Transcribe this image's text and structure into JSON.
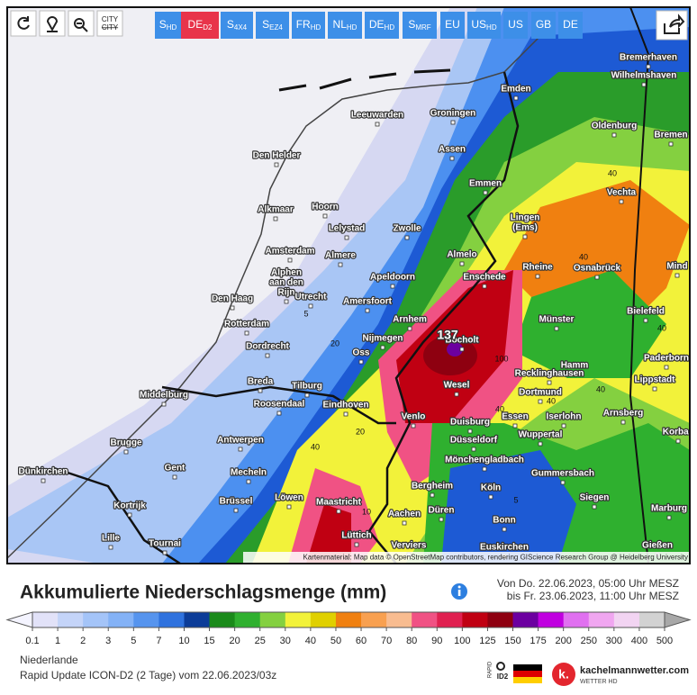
{
  "toolbar": {
    "city_button": {
      "top": "CITY",
      "bottom": "CITY"
    },
    "models": [
      {
        "main": "S",
        "sub": "HD"
      },
      {
        "main": "DE",
        "sub": "D2",
        "active": true
      },
      {
        "main": "S",
        "sub": "4X4"
      },
      {
        "main": "S",
        "sub": "EZ4"
      },
      {
        "main": "FR",
        "sub": "HD"
      },
      {
        "main": "NL",
        "sub": "HD"
      },
      {
        "main": "DE",
        "sub": "HD"
      },
      {
        "main": "S",
        "sub": "MRF"
      },
      {
        "main": "EU"
      },
      {
        "main": "US",
        "sub": "HD"
      },
      {
        "main": "US"
      },
      {
        "main": "GB"
      },
      {
        "main": "DE"
      }
    ]
  },
  "map": {
    "attribution": "Kartenmaterial: Map data © OpenStreetMap contributors, rendering GIScience Research Group @ Heidelberg University",
    "cities": [
      "Bremerhaven",
      "Wilhelmshaven",
      "Emden",
      "Leeuwarden",
      "Groningen",
      "Oldenburg",
      "Bremen",
      "Den Helder",
      "Assen",
      "Vechta",
      "Emmen",
      "Alkmaar",
      "Hoorn",
      [
        "Lingen",
        "(Ems)"
      ],
      "Lelystad",
      "Zwolle",
      "Almelo",
      "Amsterdam",
      "Almere",
      "Rheine",
      "Osnabrück",
      "Mind",
      "Apeldoorn",
      "Enschede",
      [
        "Alphen",
        "aan den",
        "Rijn"
      ],
      "Den Haag",
      "Utrecht",
      "Amersfoort",
      "Bielefeld",
      "Rotterdam",
      "Arnhem",
      "Münster",
      "Bocholt",
      "Nijmegen",
      "Dordrecht",
      "Oss",
      "Paderborn",
      "Hamm",
      "Recklinghausen",
      "Breda",
      "Tilburg",
      "Wesel",
      "Lippstadt",
      "Middelburg",
      "Dortmund",
      "Roosendaal",
      "Eindhoven",
      "Essen",
      "Iserlohn",
      "Arnsberg",
      "Venlo",
      "Duisburg",
      "Korbac",
      "Wuppertal",
      "Brugge",
      "Antwerpen",
      "Düsseldorf",
      "Mönchengladbach",
      "Dünkirchen",
      "Gent",
      "Mecheln",
      "Gummersbach",
      "Bergheim",
      "Köln",
      "Löwen",
      "Brüssel",
      "Maastricht",
      "Siegen",
      "Kortrijk",
      "Düren",
      "Aachen",
      "Bonn",
      "Marburg",
      "Lüttich",
      "Lille",
      "Tournai",
      "Verviers",
      "Euskirchen",
      "Gießen"
    ],
    "contour_labels": [
      40,
      40,
      20,
      5,
      40,
      137,
      100,
      40,
      40,
      40,
      20,
      40,
      5,
      10
    ]
  },
  "header": {
    "title": "Akkumulierte Niederschlagsmenge (mm)",
    "from": "Von Do. 22.06.2023, 05:00 Uhr MESZ",
    "to": "bis Fr. 23.06.2023, 11:00 Uhr MESZ"
  },
  "legend": {
    "ticks": [
      0.1,
      1,
      2,
      3,
      5,
      7,
      10,
      15,
      20,
      25,
      30,
      40,
      50,
      60,
      70,
      80,
      90,
      100,
      125,
      150,
      175,
      200,
      250,
      300,
      400,
      500
    ],
    "colors": [
      "#e2e2f8",
      "#c4d4f8",
      "#a4c4f8",
      "#84b2f6",
      "#5694ee",
      "#2f72de",
      "#0c3c98",
      "#1a8a1a",
      "#2fb02f",
      "#84d040",
      "#f2f23a",
      "#e0d000",
      "#f08010",
      "#f8a050",
      "#f8bc90",
      "#f05284",
      "#e02050",
      "#c00012",
      "#8e0010",
      "#6c00a0",
      "#c000e0",
      "#e070f0",
      "#f0a6f0",
      "#f2d4f2",
      "#d2d2d2"
    ]
  },
  "footer": {
    "region": "Niederlande",
    "run": "Rapid Update ICON-D2 (2 Tage) vom 22.06.2023/03z",
    "badge_top": "RAPID",
    "badge_bottom": "ID2",
    "logo_mark": "k.",
    "site": "kachelmannwetter.com",
    "site_sub": "WETTER HD"
  }
}
